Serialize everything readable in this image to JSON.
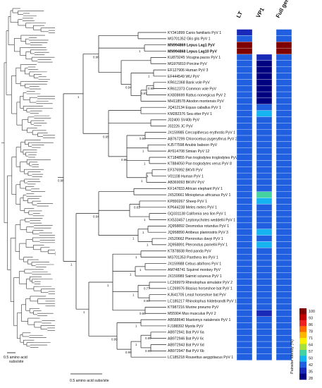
{
  "headers": [
    "LT",
    "VP1",
    "Full genome"
  ],
  "scale_small": "0.5 amino acid subs/site",
  "scale_large": "0.5 amino acid subs/site",
  "legend": {
    "title": "Pairwise identity (%)",
    "ticks": [
      "100",
      "93",
      "86",
      "78",
      "71",
      "64",
      "57",
      "50",
      "42",
      "35",
      "28"
    ],
    "colors": [
      "#7f0000",
      "#c00000",
      "#ee2020",
      "#ff6a00",
      "#ffb400",
      "#f7f000",
      "#a6e03c",
      "#44d2a0",
      "#15b4f0",
      "#2060e0",
      "#1a2ab8",
      "#000080"
    ]
  },
  "taxa": [
    {
      "name": "KY341899 Canis familiaris PyV 1",
      "bold": false,
      "lt": 35,
      "vp1": null,
      "fg": 42
    },
    {
      "name": "MG701352 Glis glis PyV 1",
      "bold": false,
      "lt": 42,
      "vp1": null,
      "fg": 43
    },
    {
      "name": "MN994869 Lepus Lag1 PyV",
      "bold": true,
      "lt": 100,
      "vp1": null,
      "fg": 100
    },
    {
      "name": "MN994868 Lepus Lag10 PyV",
      "bold": true,
      "lt": 100,
      "vp1": null,
      "fg": 100
    },
    {
      "name": "KU879245 Vicugna pacos PyV 1",
      "bold": false,
      "lt": 40,
      "vp1": 35,
      "fg": 40
    },
    {
      "name": "MG976810 Porcine PyV",
      "bold": false,
      "lt": 40,
      "vp1": 28,
      "fg": 40
    },
    {
      "name": "EF127906 Human PyV 3",
      "bold": false,
      "lt": 40,
      "vp1": 28,
      "fg": 40
    },
    {
      "name": "EF444549 WU PyV",
      "bold": false,
      "lt": 40,
      "vp1": 28,
      "fg": 40
    },
    {
      "name": "KR612368 Bank vole PyV",
      "bold": false,
      "lt": 40,
      "vp1": 30,
      "fg": 40
    },
    {
      "name": "KR612373 Common vole PyV",
      "bold": false,
      "lt": 40,
      "vp1": 30,
      "fg": 40
    },
    {
      "name": "KX808699 Rattus norvegicus PyV 2",
      "bold": false,
      "lt": 40,
      "vp1": 30,
      "fg": 40
    },
    {
      "name": "MH118578 Akodon montensis PyV",
      "bold": false,
      "lt": 40,
      "vp1": 28,
      "fg": 40
    },
    {
      "name": "JQ412134 Equus caballus PyV 1",
      "bold": false,
      "lt": 42,
      "vp1": 42,
      "fg": 42
    },
    {
      "name": "KM282376 Sea otter PyV 1",
      "bold": false,
      "lt": 42,
      "vp1": 46,
      "fg": 42
    },
    {
      "name": "J02400 SV40b PyV",
      "bold": false,
      "lt": 42,
      "vp1": 42,
      "fg": 42
    },
    {
      "name": "J02226 JC PyV",
      "bold": false,
      "lt": 42,
      "vp1": 42,
      "fg": 42
    },
    {
      "name": "JX159985 Cercopithecus erythrotis PyV 1",
      "bold": false,
      "lt": 42,
      "vp1": 42,
      "fg": 42
    },
    {
      "name": "AB767299 Chlorocebus pygerythrus PyV 2",
      "bold": false,
      "lt": 42,
      "vp1": 42,
      "fg": 42
    },
    {
      "name": "KJ577598 Anubis baboon PyV",
      "bold": false,
      "lt": 42,
      "vp1": 42,
      "fg": 42
    },
    {
      "name": "AY614708 Simian PyV 12",
      "bold": false,
      "lt": 42,
      "vp1": 42,
      "fg": 42
    },
    {
      "name": "KT184855 Pan troglodytes troglodytes PyV 1",
      "bold": false,
      "lt": 42,
      "vp1": 42,
      "fg": 42
    },
    {
      "name": "KT884050 Pan troglodytes verus PyV 8",
      "bold": false,
      "lt": 42,
      "vp1": 42,
      "fg": 42
    },
    {
      "name": "EF376992 BKVII PyV",
      "bold": false,
      "lt": 42,
      "vp1": 42,
      "fg": 42
    },
    {
      "name": "V01108 Human PyV 1",
      "bold": false,
      "lt": 42,
      "vp1": 42,
      "fg": 42
    },
    {
      "name": "AB369093 BKVIV PyV",
      "bold": false,
      "lt": 42,
      "vp1": 42,
      "fg": 42
    },
    {
      "name": "KF147833 African elephant PyV 1",
      "bold": false,
      "lt": 42,
      "vp1": 42,
      "fg": 42
    },
    {
      "name": "JX520661 Miniopterus africanus PyV 1",
      "bold": false,
      "lt": 42,
      "vp1": 57,
      "fg": 44
    },
    {
      "name": "KP890267 Sheep PyV 1",
      "bold": false,
      "lt": 42,
      "vp1": 48,
      "fg": 42
    },
    {
      "name": "KP644238 Meles meles PyV 1",
      "bold": false,
      "lt": 42,
      "vp1": 42,
      "fg": 42
    },
    {
      "name": "GQ331138 California sea lion PyV 1",
      "bold": false,
      "lt": 42,
      "vp1": 42,
      "fg": 42
    },
    {
      "name": "KX533457 Leptonychotes weddellii PyV 1",
      "bold": false,
      "lt": 42,
      "vp1": 42,
      "fg": 42
    },
    {
      "name": "JQ958892 Desmodus rotundus PyV 1",
      "bold": false,
      "lt": 42,
      "vp1": 42,
      "fg": 42
    },
    {
      "name": "JQ958890 Artibeus planirostris PyV 3",
      "bold": false,
      "lt": 42,
      "vp1": 46,
      "fg": 42
    },
    {
      "name": "JX520662 Pteronotus davyi PyV 1",
      "bold": false,
      "lt": 42,
      "vp1": 42,
      "fg": 42
    },
    {
      "name": "JQ958891 Pteronotus parnellii PyV 1",
      "bold": false,
      "lt": 42,
      "vp1": 48,
      "fg": 42
    },
    {
      "name": "KT878838 Red panda PyV",
      "bold": false,
      "lt": 42,
      "vp1": 42,
      "fg": 42
    },
    {
      "name": "MG701353 Panthera leo PyV 1",
      "bold": false,
      "lt": 42,
      "vp1": 42,
      "fg": 42
    },
    {
      "name": "JX159988 Cebus albifrons PyV 1",
      "bold": false,
      "lt": 42,
      "vp1": 42,
      "fg": 42
    },
    {
      "name": "AM748741 Squirrel monkey PyV",
      "bold": false,
      "lt": 42,
      "vp1": 42,
      "fg": 42
    },
    {
      "name": "JX159989 Saimiri sciureus PyV 1",
      "bold": false,
      "lt": 42,
      "vp1": 42,
      "fg": 42
    },
    {
      "name": "LC269979 Rhinolophus simulator PyV 2",
      "bold": false,
      "lt": 42,
      "vp1": 44,
      "fg": 42
    },
    {
      "name": "LC269976 Blasius horseshoe bat PyV 1",
      "bold": false,
      "lt": 42,
      "vp1": 42,
      "fg": 42
    },
    {
      "name": "KJ641705 Least horseshoe bat PyV",
      "bold": false,
      "lt": 42,
      "vp1": 42,
      "fg": 42
    },
    {
      "name": "LC185217 Rhinolophus hildebrandti PyV 1",
      "bold": false,
      "lt": 42,
      "vp1": 42,
      "fg": 42
    },
    {
      "name": "KT987216 Murine pneumo PyV",
      "bold": false,
      "lt": 42,
      "vp1": 42,
      "fg": 42
    },
    {
      "name": "M55904 Mus musculus PyV 2",
      "bold": false,
      "lt": 42,
      "vp1": 35,
      "fg": 42
    },
    {
      "name": "AB588640 Mastomys natalensis PyV 1",
      "bold": false,
      "lt": 42,
      "vp1": 42,
      "fg": 42
    },
    {
      "name": "FJ188392 Myotis PyV",
      "bold": false,
      "lt": 42,
      "vp1": 42,
      "fg": 42
    },
    {
      "name": "AB972941 Bat PyV 6a",
      "bold": false,
      "lt": 42,
      "vp1": 42,
      "fg": 42
    },
    {
      "name": "AB972946 Bat PyV 6c",
      "bold": false,
      "lt": 42,
      "vp1": 42,
      "fg": 42
    },
    {
      "name": "AB972943 Bat PyV 6d",
      "bold": false,
      "lt": 42,
      "vp1": 42,
      "fg": 42
    },
    {
      "name": "AB972947 Bat PyV 6b",
      "bold": false,
      "lt": 42,
      "vp1": 42,
      "fg": 42
    },
    {
      "name": "LC185218 Rousettus aegyptiacus PyV 1",
      "bold": false,
      "lt": 42,
      "vp1": 42,
      "fg": 42
    }
  ],
  "supports": [
    "1",
    "1",
    "0.98",
    "0.97",
    "0.94",
    "0.99",
    "1",
    "1",
    "1",
    "1",
    "0.96",
    "0.98",
    "0.95",
    "0.98",
    "0.94",
    "1",
    "1",
    "1",
    "1",
    "0.98",
    "0.81",
    "1",
    "1",
    "1",
    "1",
    "1",
    "1",
    "1",
    "0.77",
    "0.99",
    "1",
    "0.99",
    "1",
    "0.99",
    "0.95",
    "1",
    "0.99",
    "0.99",
    "0.98",
    "0.99"
  ]
}
